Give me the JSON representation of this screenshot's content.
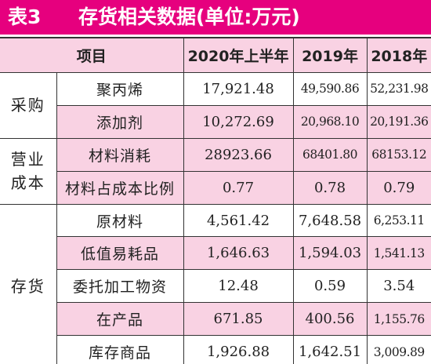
{
  "title": {
    "label": "表3",
    "text": "存货相关数据(单位:万元)"
  },
  "table": {
    "headers": {
      "item": "项目",
      "h2020": "2020年上半年",
      "h2019": "2019年",
      "h2018": "2018年"
    },
    "groups": {
      "purchase": "采购",
      "operating_cost": "营业\n成本",
      "inventory": "存货"
    },
    "rows": [
      {
        "item": "聚丙烯",
        "v2020": "17,921.48",
        "v2019": "49,590.86",
        "v2018": "52,231.98"
      },
      {
        "item": "添加剂",
        "v2020": "10,272.69",
        "v2019": "20,968.10",
        "v2018": "20,191.36"
      },
      {
        "item": "材料消耗",
        "v2020": "28923.66",
        "v2019": "68401.80",
        "v2018": "68153.12"
      },
      {
        "item": "材料占成本比例",
        "v2020": "0.77",
        "v2019": "0.78",
        "v2018": "0.79"
      },
      {
        "item": "原材料",
        "v2020": "4,561.42",
        "v2019": "7,648.58",
        "v2018": "6,253.11"
      },
      {
        "item": "低值易耗品",
        "v2020": "1,646.63",
        "v2019": "1,594.03",
        "v2018": "1,541.13"
      },
      {
        "item": "委托加工物资",
        "v2020": "12.48",
        "v2019": "0.59",
        "v2018": "3.54"
      },
      {
        "item": "在产品",
        "v2020": "671.85",
        "v2019": "400.56",
        "v2018": "1,155.76"
      },
      {
        "item": "库存商品",
        "v2020": "1,926.88",
        "v2019": "1,642.51",
        "v2018": "3,009.89"
      }
    ]
  },
  "colors": {
    "title_bg": "#e6007e",
    "row_pink": "#f9d2e3",
    "text": "#222222"
  }
}
